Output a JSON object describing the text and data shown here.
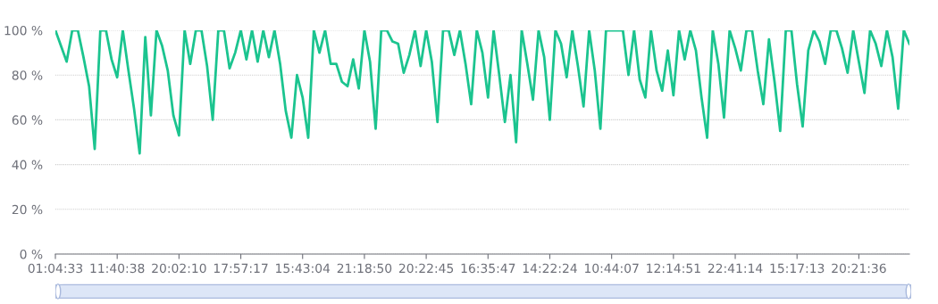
{
  "chart_data": {
    "type": "line",
    "categories": [
      "01:04:33",
      null,
      null,
      null,
      null,
      null,
      null,
      null,
      null,
      null,
      null,
      "11:40:38",
      null,
      null,
      null,
      null,
      null,
      null,
      null,
      null,
      null,
      null,
      "20:02:10",
      null,
      null,
      null,
      null,
      null,
      null,
      null,
      null,
      null,
      null,
      "17:57:17",
      null,
      null,
      null,
      null,
      null,
      null,
      null,
      null,
      null,
      null,
      "15:43:04",
      null,
      null,
      null,
      null,
      null,
      null,
      null,
      null,
      null,
      null,
      "21:18:50",
      null,
      null,
      null,
      null,
      null,
      null,
      null,
      null,
      null,
      null,
      "20:22:45",
      null,
      null,
      null,
      null,
      null,
      null,
      null,
      null,
      null,
      null,
      "16:35:47",
      null,
      null,
      null,
      null,
      null,
      null,
      null,
      null,
      null,
      null,
      "14:22:24",
      null,
      null,
      null,
      null,
      null,
      null,
      null,
      null,
      null,
      null,
      "10:44:07",
      null,
      null,
      null,
      null,
      null,
      null,
      null,
      null,
      null,
      null,
      "12:14:51",
      null,
      null,
      null,
      null,
      null,
      null,
      null,
      null,
      null,
      null,
      "22:41:14",
      null,
      null,
      null,
      null,
      null,
      null,
      null,
      null,
      null,
      null,
      "15:17:13",
      null,
      null,
      null,
      null,
      null,
      null,
      null,
      null,
      null,
      null,
      "20:21:36",
      null,
      null,
      null,
      null,
      null,
      null,
      null,
      null,
      null
    ],
    "series": [
      {
        "color": "#1bc48f",
        "values": [
          100,
          93,
          86,
          100,
          100,
          88,
          75,
          47,
          100,
          100,
          87,
          79,
          100,
          82,
          65,
          45,
          97,
          62,
          100,
          93,
          82,
          62,
          53,
          100,
          85,
          100,
          100,
          84,
          60,
          100,
          100,
          83,
          90,
          100,
          87,
          100,
          86,
          100,
          88,
          100,
          85,
          64,
          52,
          80,
          70,
          52,
          100,
          90,
          100,
          85,
          85,
          77,
          75,
          87,
          74,
          100,
          86,
          56,
          100,
          100,
          95,
          94,
          81,
          89,
          100,
          84,
          100,
          86,
          59,
          100,
          100,
          89,
          100,
          85,
          67,
          100,
          90,
          70,
          100,
          80,
          59,
          80,
          50,
          100,
          85,
          69,
          100,
          88,
          60,
          100,
          94,
          79,
          100,
          84,
          66,
          100,
          82,
          56,
          100,
          100,
          100,
          100,
          80,
          100,
          78,
          70,
          100,
          82,
          73,
          91,
          71,
          100,
          87,
          100,
          91,
          70,
          52,
          100,
          85,
          61,
          100,
          92,
          82,
          100,
          100,
          82,
          67,
          96,
          77,
          55,
          100,
          100,
          76,
          57,
          91,
          100,
          95,
          85,
          100,
          100,
          92,
          81,
          100,
          86,
          72,
          100,
          94,
          84,
          100,
          88,
          65,
          100,
          94
        ]
      }
    ],
    "ylim": [
      0,
      100
    ],
    "yticks": [
      {
        "value": 0,
        "label": "0 %"
      },
      {
        "value": 20,
        "label": "20 %"
      },
      {
        "value": 40,
        "label": "40 %"
      },
      {
        "value": 60,
        "label": "60 %"
      },
      {
        "value": 80,
        "label": "80 %"
      },
      {
        "value": 100,
        "label": "100 %"
      }
    ],
    "grid": "y",
    "legend": false,
    "marker": "none",
    "line_style": "solid"
  }
}
